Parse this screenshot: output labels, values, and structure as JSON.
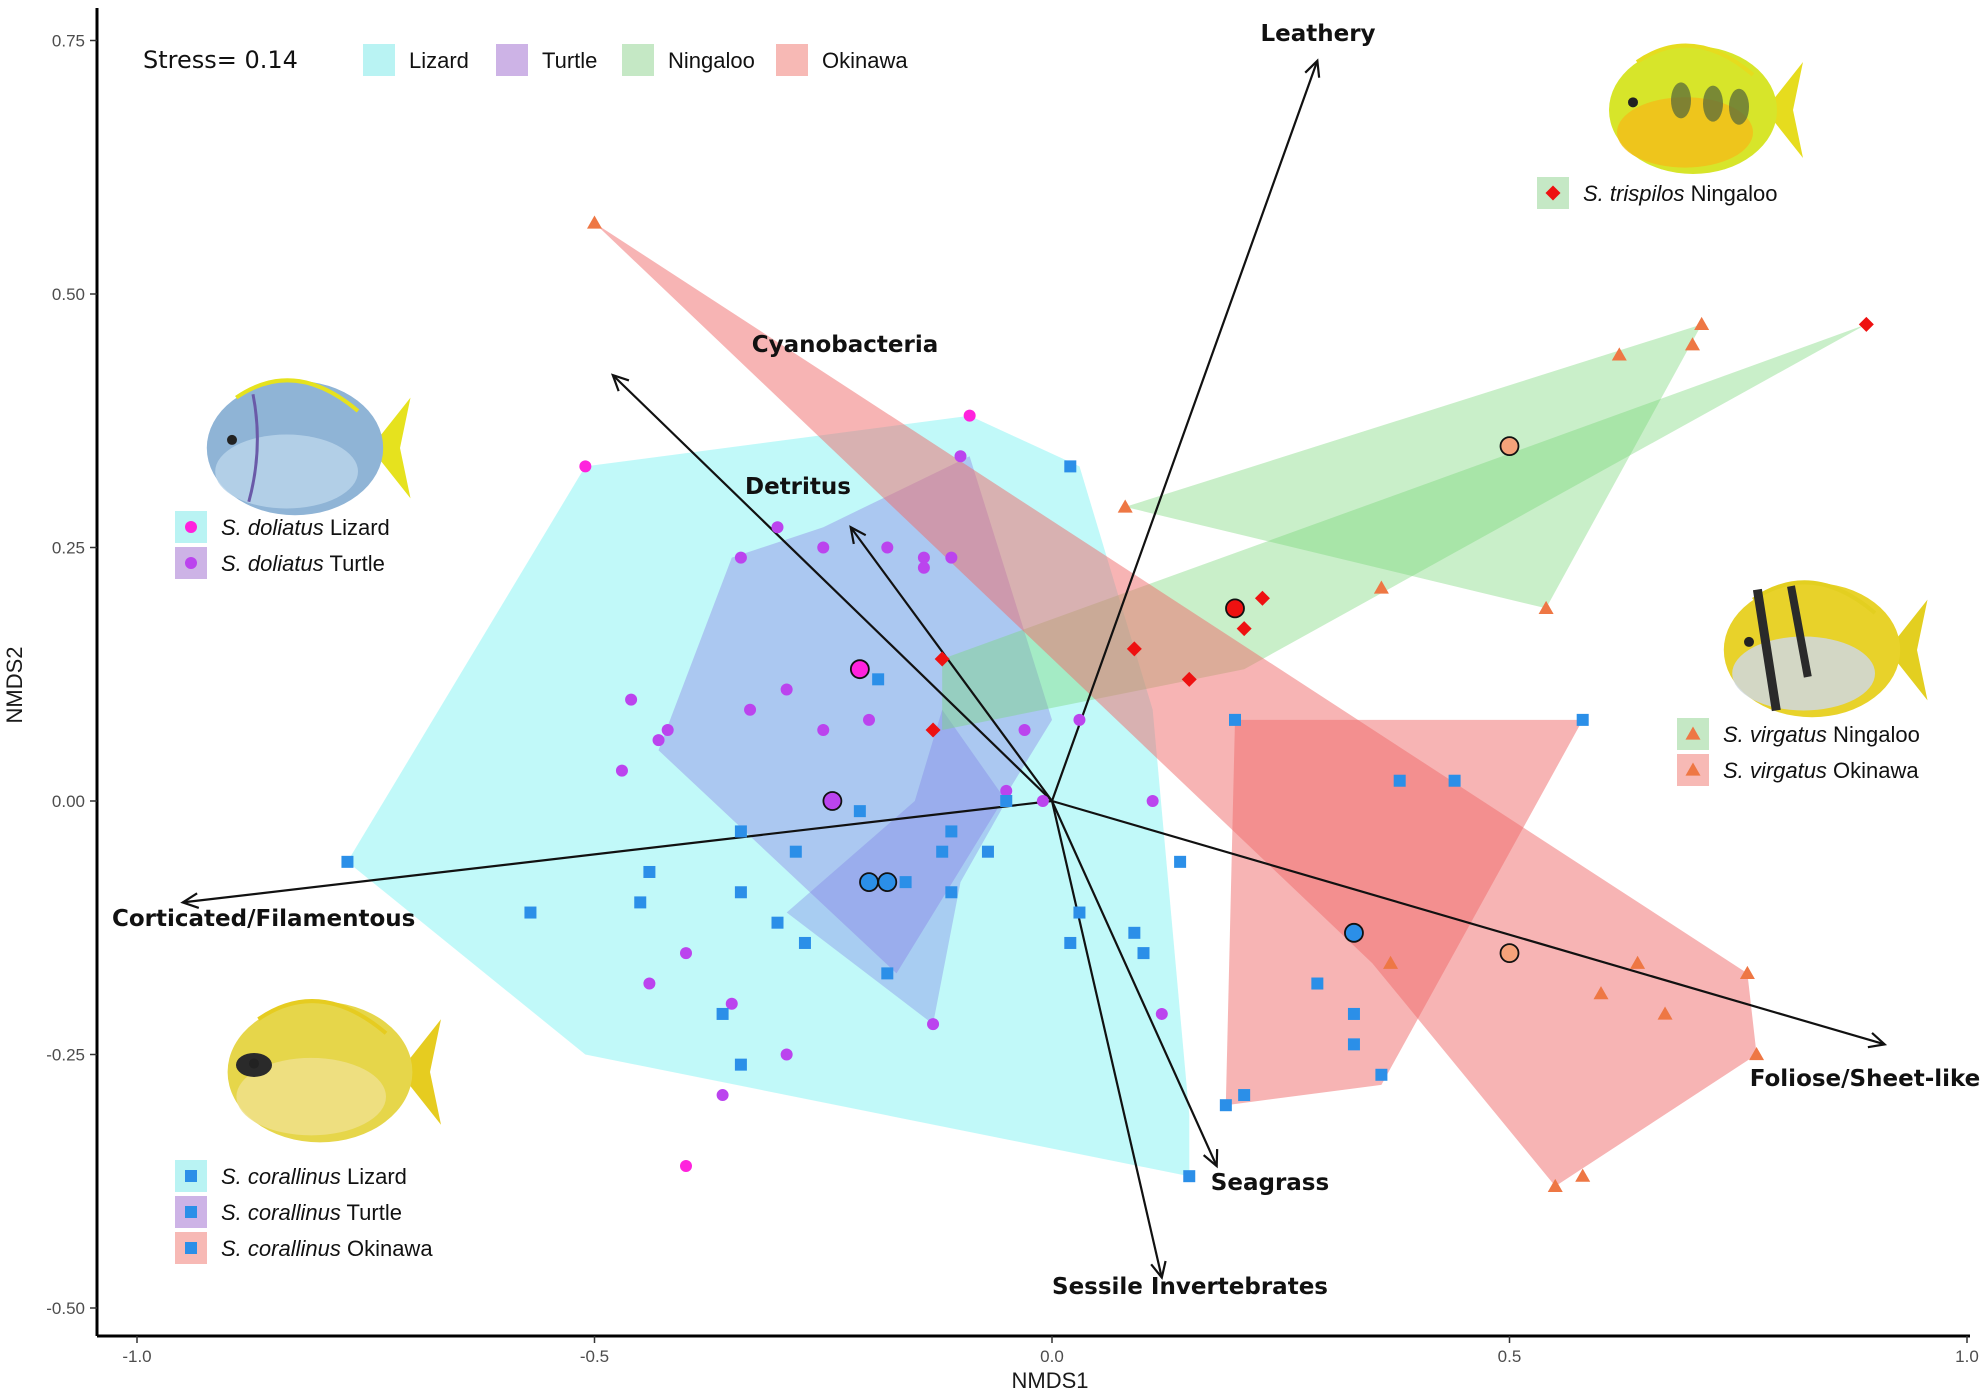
{
  "chart_data": {
    "type": "scatter",
    "xlabel": "NMDS1",
    "ylabel": "NMDS2",
    "xlim": [
      -1.0,
      1.0
    ],
    "ylim": [
      -0.5,
      0.75
    ],
    "x_ticks": [
      "-1.0",
      "-0.5",
      "0.0",
      "0.5",
      "1.0"
    ],
    "y_ticks": [
      "-0.50",
      "-0.25",
      "0.00",
      "0.25",
      "0.50",
      "0.75"
    ],
    "grid": false,
    "stress_label": "Stress= 0.14",
    "top_legend": [
      {
        "label": "Lizard",
        "color": "#b9f3f3"
      },
      {
        "label": "Turtle",
        "color": "#cdb3e6"
      },
      {
        "label": "Ningaloo",
        "color": "#c5e8c5"
      },
      {
        "label": "Okinawa",
        "color": "#f7b9b5"
      }
    ],
    "species_legends": [
      {
        "species": "S. trispilos",
        "site": "Ningaloo",
        "fill": "#c5e8c5",
        "marker": "diamond",
        "marker_color": "#ee1111"
      },
      {
        "species": "S. doliatus",
        "site": "Lizard",
        "fill": "#b9f3f3",
        "marker": "circle",
        "marker_color": "#ff22dd"
      },
      {
        "species": "S. doliatus",
        "site": "Turtle",
        "fill": "#cdb3e6",
        "marker": "circle",
        "marker_color": "#bb44ee"
      },
      {
        "species": "S. virgatus",
        "site": "Ningaloo",
        "fill": "#c5e8c5",
        "marker": "triangle",
        "marker_color": "#ee7744"
      },
      {
        "species": "S. virgatus",
        "site": "Okinawa",
        "fill": "#f7b9b5",
        "marker": "triangle",
        "marker_color": "#ee7744"
      },
      {
        "species": "S. corallinus",
        "site": "Lizard",
        "fill": "#b9f3f3",
        "marker": "square",
        "marker_color": "#2b8fe8"
      },
      {
        "species": "S. corallinus",
        "site": "Turtle",
        "fill": "#cdb3e6",
        "marker": "square",
        "marker_color": "#2b8fe8"
      },
      {
        "species": "S. corallinus",
        "site": "Okinawa",
        "fill": "#f7b9b5",
        "marker": "square",
        "marker_color": "#2b8fe8"
      }
    ],
    "vectors": [
      {
        "label": "Leathery",
        "x": 0.29,
        "y": 0.73
      },
      {
        "label": "Cyanobacteria",
        "x": -0.48,
        "y": 0.42
      },
      {
        "label": "Detritus",
        "x": -0.22,
        "y": 0.27
      },
      {
        "label": "Corticated/Filamentous",
        "x": -0.95,
        "y": -0.1
      },
      {
        "label": "Foliose/Sheet-like",
        "x": 0.91,
        "y": -0.24
      },
      {
        "label": "Seagrass",
        "x": 0.18,
        "y": -0.36
      },
      {
        "label": "Sessile Invertebrates",
        "x": 0.12,
        "y": -0.47
      }
    ],
    "hulls": [
      {
        "name": "S. corallinus Lizard",
        "color": "#5cf0f0",
        "opacity": 0.38,
        "points": [
          [
            -0.77,
            -0.06
          ],
          [
            -0.51,
            0.33
          ],
          [
            -0.09,
            0.38
          ],
          [
            0.03,
            0.33
          ],
          [
            0.11,
            0.09
          ],
          [
            0.15,
            -0.31
          ],
          [
            0.15,
            -0.37
          ],
          [
            -0.51,
            -0.25
          ]
        ]
      },
      {
        "name": "S. doliatus Lizard",
        "color": "#8878e6",
        "opacity": 0.38,
        "points": [
          [
            -0.35,
            0.24
          ],
          [
            -0.25,
            0.27
          ],
          [
            -0.09,
            0.34
          ],
          [
            0.0,
            0.08
          ],
          [
            -0.17,
            -0.17
          ],
          [
            -0.43,
            0.05
          ]
        ]
      },
      {
        "name": "S. corallinus Turtle",
        "color": "#7a7ae6",
        "opacity": 0.35,
        "points": [
          [
            -0.12,
            0.09
          ],
          [
            -0.05,
            0.0
          ],
          [
            -0.1,
            -0.08
          ],
          [
            -0.13,
            -0.22
          ],
          [
            -0.29,
            -0.11
          ],
          [
            -0.15,
            0.0
          ]
        ]
      },
      {
        "name": "S. virgatus Ningaloo",
        "color": "#78d878",
        "opacity": 0.4,
        "points": [
          [
            0.08,
            0.29
          ],
          [
            0.71,
            0.47
          ],
          [
            0.54,
            0.19
          ]
        ]
      },
      {
        "name": "S. trispilos Ningaloo",
        "color": "#78d878",
        "opacity": 0.4,
        "points": [
          [
            -0.12,
            0.14
          ],
          [
            0.89,
            0.47
          ],
          [
            0.21,
            0.13
          ],
          [
            -0.12,
            0.07
          ]
        ]
      },
      {
        "name": "S. virgatus Okinawa",
        "color": "#f06a6a",
        "opacity": 0.5,
        "points": [
          [
            -0.5,
            0.57
          ],
          [
            0.76,
            -0.17
          ],
          [
            0.77,
            -0.25
          ],
          [
            0.55,
            -0.38
          ],
          [
            0.35,
            -0.16
          ]
        ]
      },
      {
        "name": "S. corallinus Okinawa",
        "color": "#f06a6a",
        "opacity": 0.5,
        "points": [
          [
            0.2,
            0.08
          ],
          [
            0.58,
            0.08
          ],
          [
            0.36,
            -0.28
          ],
          [
            0.19,
            -0.3
          ]
        ]
      }
    ],
    "series": [
      {
        "name": "S. doliatus Lizard",
        "marker": "circle",
        "color": "#ff22dd",
        "points": [
          [
            -0.51,
            0.33
          ],
          [
            -0.09,
            0.38
          ],
          [
            -0.4,
            -0.36
          ]
        ]
      },
      {
        "name": "S. doliatus Turtle",
        "marker": "circle",
        "color": "#bb44ee",
        "points": [
          [
            -0.3,
            0.27
          ],
          [
            -0.34,
            0.24
          ],
          [
            -0.25,
            0.25
          ],
          [
            -0.18,
            0.25
          ],
          [
            -0.14,
            0.24
          ],
          [
            -0.1,
            0.34
          ],
          [
            -0.11,
            0.24
          ],
          [
            -0.14,
            0.23
          ],
          [
            -0.29,
            0.11
          ],
          [
            -0.33,
            0.09
          ],
          [
            -0.46,
            0.1
          ],
          [
            -0.42,
            0.07
          ],
          [
            -0.43,
            0.06
          ],
          [
            -0.25,
            0.07
          ],
          [
            -0.2,
            0.08
          ],
          [
            -0.03,
            0.07
          ],
          [
            0.03,
            0.08
          ],
          [
            -0.47,
            0.03
          ],
          [
            -0.05,
            0.01
          ],
          [
            -0.01,
            0.0
          ],
          [
            0.11,
            0.0
          ],
          [
            -0.4,
            -0.15
          ],
          [
            -0.44,
            -0.18
          ],
          [
            -0.35,
            -0.2
          ],
          [
            -0.36,
            -0.29
          ],
          [
            -0.29,
            -0.25
          ],
          [
            -0.13,
            -0.22
          ],
          [
            0.12,
            -0.21
          ]
        ]
      },
      {
        "name": "S. corallinus",
        "marker": "square",
        "color": "#2b8fe8",
        "points": [
          [
            -0.77,
            -0.06
          ],
          [
            -0.57,
            -0.11
          ],
          [
            -0.44,
            -0.07
          ],
          [
            -0.45,
            -0.1
          ],
          [
            -0.34,
            -0.03
          ],
          [
            -0.34,
            -0.09
          ],
          [
            -0.28,
            -0.05
          ],
          [
            -0.3,
            -0.12
          ],
          [
            -0.27,
            -0.14
          ],
          [
            -0.36,
            -0.21
          ],
          [
            -0.34,
            -0.26
          ],
          [
            -0.19,
            0.12
          ],
          [
            -0.21,
            -0.01
          ],
          [
            -0.16,
            -0.08
          ],
          [
            -0.18,
            -0.17
          ],
          [
            -0.12,
            -0.05
          ],
          [
            -0.11,
            -0.03
          ],
          [
            -0.11,
            -0.09
          ],
          [
            -0.07,
            -0.05
          ],
          [
            -0.05,
            0.0
          ],
          [
            0.02,
            0.33
          ],
          [
            0.03,
            -0.11
          ],
          [
            0.02,
            -0.14
          ],
          [
            0.09,
            -0.13
          ],
          [
            0.1,
            -0.15
          ],
          [
            0.14,
            -0.06
          ],
          [
            0.15,
            -0.37
          ],
          [
            0.2,
            0.08
          ],
          [
            0.58,
            0.08
          ],
          [
            0.38,
            0.02
          ],
          [
            0.44,
            0.02
          ],
          [
            0.29,
            -0.18
          ],
          [
            0.33,
            -0.21
          ],
          [
            0.33,
            -0.24
          ],
          [
            0.36,
            -0.27
          ],
          [
            0.19,
            -0.3
          ],
          [
            0.21,
            -0.29
          ]
        ]
      },
      {
        "name": "S. trispilos Ningaloo",
        "marker": "diamond",
        "color": "#ee1111",
        "points": [
          [
            -0.12,
            0.14
          ],
          [
            -0.13,
            0.07
          ],
          [
            0.09,
            0.15
          ],
          [
            0.15,
            0.12
          ],
          [
            0.21,
            0.17
          ],
          [
            0.23,
            0.2
          ],
          [
            0.89,
            0.47
          ]
        ]
      },
      {
        "name": "S. virgatus",
        "marker": "triangle",
        "color": "#ee7744",
        "points": [
          [
            -0.5,
            0.57
          ],
          [
            0.08,
            0.29
          ],
          [
            0.36,
            0.21
          ],
          [
            0.54,
            0.19
          ],
          [
            0.62,
            0.44
          ],
          [
            0.7,
            0.45
          ],
          [
            0.71,
            0.47
          ],
          [
            0.37,
            -0.16
          ],
          [
            0.6,
            -0.19
          ],
          [
            0.64,
            -0.16
          ],
          [
            0.67,
            -0.21
          ],
          [
            0.76,
            -0.17
          ],
          [
            0.77,
            -0.25
          ],
          [
            0.55,
            -0.38
          ],
          [
            0.58,
            -0.37
          ]
        ]
      }
    ],
    "centroids": [
      {
        "x": -0.21,
        "y": 0.13,
        "color": "#ff22dd"
      },
      {
        "x": -0.24,
        "y": 0.0,
        "color": "#bb44ee"
      },
      {
        "x": -0.2,
        "y": -0.08,
        "color": "#2b8fe8"
      },
      {
        "x": -0.18,
        "y": -0.08,
        "color": "#2b8fe8"
      },
      {
        "x": 0.33,
        "y": -0.13,
        "color": "#2b8fe8"
      },
      {
        "x": 0.2,
        "y": 0.19,
        "color": "#ee1111"
      },
      {
        "x": 0.5,
        "y": 0.35,
        "color": "#f5a27a"
      },
      {
        "x": 0.5,
        "y": -0.15,
        "color": "#f5a27a"
      }
    ]
  }
}
